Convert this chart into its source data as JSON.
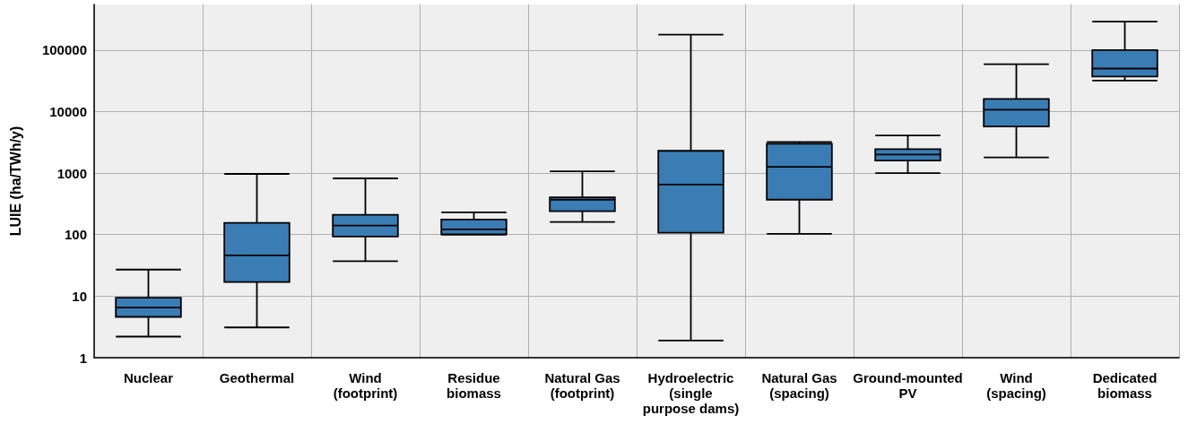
{
  "chart_data": {
    "type": "box",
    "ylabel": "LUIE (ha/TWh/y)",
    "categories": [
      "Nuclear",
      "Geothermal",
      "Wind\n(footprint)",
      "Residue\nbiomass",
      "Natural Gas\n(footprint)",
      "Hydroelectric\n(single\npurpose dams)",
      "Natural Gas\n(spacing)",
      "Ground-mounted\nPV",
      "Wind\n(spacing)",
      "Dedicated\nbiomass"
    ],
    "series": [
      {
        "color": "#3a7db5",
        "boxes": [
          {
            "low": 2.2,
            "q1": 4.6,
            "median": 6.5,
            "q3": 9.4,
            "high": 27
          },
          {
            "low": 3.1,
            "q1": 17,
            "median": 46,
            "q3": 155,
            "high": 970
          },
          {
            "low": 37,
            "q1": 93,
            "median": 140,
            "q3": 210,
            "high": 820
          },
          {
            "low": 100,
            "q1": 101,
            "median": 122,
            "q3": 176,
            "high": 230
          },
          {
            "low": 160,
            "q1": 240,
            "median": 370,
            "q3": 405,
            "high": 1070
          },
          {
            "low": 1.9,
            "q1": 107,
            "median": 650,
            "q3": 2300,
            "high": 178000
          },
          {
            "low": 103,
            "q1": 370,
            "median": 1260,
            "q3": 3000,
            "high": 3200
          },
          {
            "low": 1000,
            "q1": 1600,
            "median": 2000,
            "q3": 2450,
            "high": 4100
          },
          {
            "low": 1800,
            "q1": 5700,
            "median": 10700,
            "q3": 16000,
            "high": 59000
          },
          {
            "low": 32000,
            "q1": 37000,
            "median": 50000,
            "q3": 100000,
            "high": 290000
          }
        ]
      }
    ],
    "log": "y",
    "ylim": [
      1,
      550000
    ],
    "yticks": [
      1,
      10,
      100,
      1000,
      10000,
      100000
    ],
    "grid": true
  }
}
